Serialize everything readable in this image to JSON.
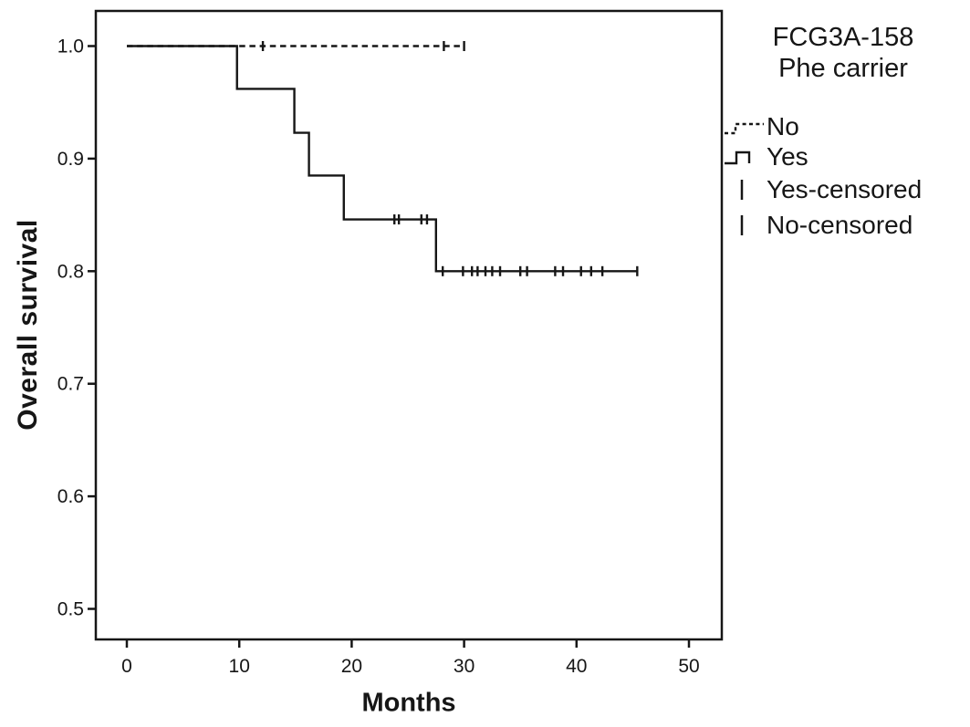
{
  "chart_data": {
    "type": "line",
    "chart_kind": "kaplan-meier-step",
    "title": "",
    "xlabel": "Months",
    "ylabel": "Overall survival",
    "x_tick_labels": [
      "0",
      "10",
      "20",
      "30",
      "40",
      "50"
    ],
    "x_tick_values": [
      0,
      10,
      20,
      30,
      40,
      50
    ],
    "y_tick_labels": [
      "1.0",
      "0.9",
      "0.8",
      "0.7",
      "0.6",
      "0.5"
    ],
    "y_tick_values": [
      1.0,
      0.9,
      0.8,
      0.7,
      0.6,
      0.5
    ],
    "xlim": [
      -2.8,
      52.9
    ],
    "ylim": [
      0.474,
      1.031
    ],
    "grid": false,
    "legend_position": "right",
    "line_color": "#161616",
    "background": "#ffffff",
    "series": [
      {
        "name": "Yes",
        "style": "solid",
        "points": [
          [
            0,
            1.0
          ],
          [
            9.8,
            1.0
          ],
          [
            9.8,
            0.962
          ],
          [
            14.9,
            0.962
          ],
          [
            14.9,
            0.923
          ],
          [
            16.2,
            0.923
          ],
          [
            16.2,
            0.885
          ],
          [
            19.3,
            0.885
          ],
          [
            19.3,
            0.846
          ],
          [
            27.5,
            0.846
          ],
          [
            27.5,
            0.8
          ],
          [
            45.4,
            0.8
          ]
        ],
        "censored": [
          [
            23.8,
            0.846
          ],
          [
            24.2,
            0.846
          ],
          [
            26.2,
            0.846
          ],
          [
            26.7,
            0.846
          ],
          [
            28.1,
            0.8
          ],
          [
            29.9,
            0.8
          ],
          [
            30.7,
            0.8
          ],
          [
            31.2,
            0.8
          ],
          [
            31.9,
            0.8
          ],
          [
            32.5,
            0.8
          ],
          [
            33.2,
            0.8
          ],
          [
            35.0,
            0.8
          ],
          [
            35.6,
            0.8
          ],
          [
            38.1,
            0.8
          ],
          [
            38.8,
            0.8
          ],
          [
            40.4,
            0.8
          ],
          [
            41.3,
            0.8
          ],
          [
            42.3,
            0.8
          ],
          [
            45.4,
            0.8
          ]
        ]
      },
      {
        "name": "No",
        "style": "dashed",
        "points": [
          [
            0,
            1.0
          ],
          [
            30.0,
            1.0
          ]
        ],
        "censored": [
          [
            12.1,
            1.0
          ],
          [
            28.2,
            1.0
          ],
          [
            30.0,
            1.0
          ]
        ]
      }
    ]
  },
  "legend": {
    "title_line1": "FCG3A-158",
    "title_line2": "Phe carrier",
    "items": [
      {
        "label": "No",
        "marker": "dashed-step-line"
      },
      {
        "label": "Yes",
        "marker": "solid-step-line"
      },
      {
        "label": "Yes-censored",
        "marker": "censor-tick"
      },
      {
        "label": "No-censored",
        "marker": "censor-tick"
      }
    ]
  }
}
